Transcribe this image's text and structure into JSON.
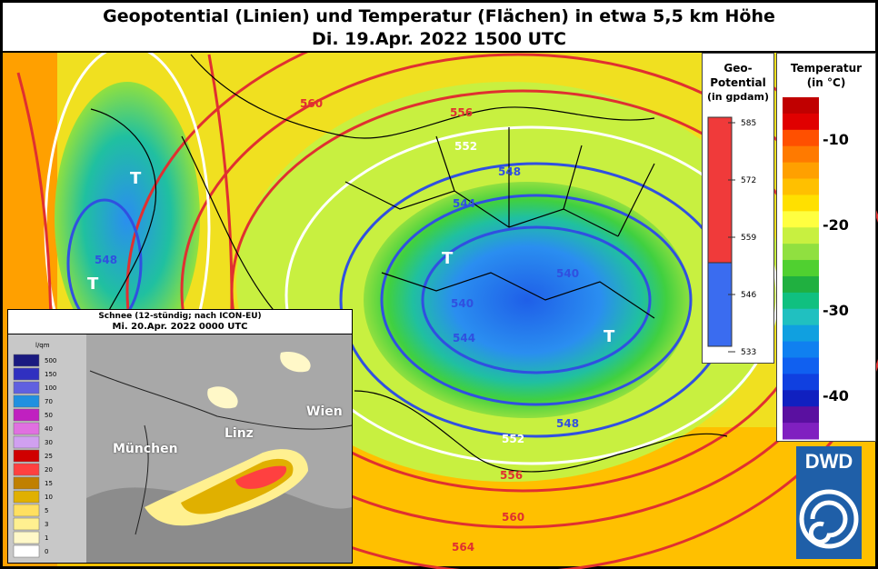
{
  "header": {
    "title": "Geopotential (Linien) und Temperatur (Flächen) in etwa 5,5 km Höhe",
    "date": "Di. 19.Apr. 2022 1500 UTC"
  },
  "contour_labels": [
    "560",
    "556",
    "552",
    "548",
    "544",
    "540",
    "540",
    "544",
    "548",
    "552",
    "556",
    "560",
    "564",
    "548"
  ],
  "low_markers": [
    "T",
    "T",
    "T",
    "T"
  ],
  "geo_legend": {
    "title_lines": [
      "Geo-",
      "Potential",
      "(in gpdam)"
    ],
    "ticks": [
      "585",
      "572",
      "559",
      "546",
      "533"
    ],
    "colors": {
      "high": "#f03a3a",
      "low": "#3a6cf0"
    }
  },
  "temp_legend": {
    "title_lines": [
      "Temperatur",
      "(in °C)"
    ],
    "labels": [
      "-10",
      "-20",
      "-30",
      "-40"
    ],
    "colors": [
      "#c00000",
      "#e00000",
      "#ff5000",
      "#ff7a00",
      "#ffa000",
      "#ffc000",
      "#ffe000",
      "#ffff40",
      "#c8f040",
      "#90e040",
      "#50d030",
      "#20b040",
      "#10c080",
      "#20c0c0",
      "#10a0e0",
      "#1080f0",
      "#1060f0",
      "#1040e0",
      "#1020c0",
      "#5a10a0",
      "#8020c0"
    ]
  },
  "snow_inset": {
    "title": "Schnee (12-stündig; nach ICON-EU)",
    "date": "Mi. 20.Apr. 2022 0000 UTC",
    "unit": "l/qm",
    "levels": [
      "500",
      "150",
      "100",
      "70",
      "50",
      "40",
      "30",
      "25",
      "20",
      "15",
      "10",
      "5",
      "3",
      "1",
      "0"
    ],
    "level_colors": [
      "#1a1a80",
      "#3030c0",
      "#6060e0",
      "#2090e0",
      "#c020c0",
      "#e070e0",
      "#d0a0f0",
      "#d00000",
      "#ff4040",
      "#c08000",
      "#e0b000",
      "#ffe060",
      "#fff090",
      "#fff8c8",
      "#ffffff"
    ],
    "cities": [
      "München",
      "Linz",
      "Wien"
    ]
  },
  "logo": {
    "text": "DWD"
  }
}
